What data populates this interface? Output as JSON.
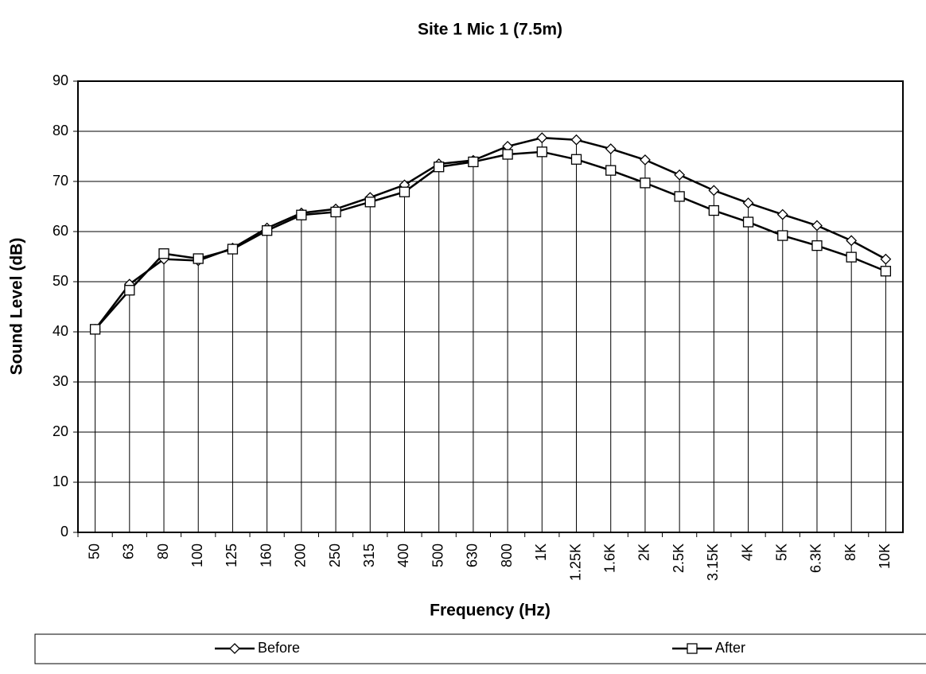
{
  "chart_data": {
    "type": "line",
    "title": "Site 1 Mic 1 (7.5m)",
    "x_label": "Frequency (Hz)",
    "y_label": "Sound Level (dB)",
    "categories": [
      "50",
      "63",
      "80",
      "100",
      "125",
      "160",
      "200",
      "250",
      "315",
      "400",
      "500",
      "630",
      "800",
      "1K",
      "1.25K",
      "1.6K",
      "2K",
      "2.5K",
      "3.15K",
      "4K",
      "5K",
      "6.3K",
      "8K",
      "10K"
    ],
    "series": [
      {
        "name": "Before",
        "color": "#000000",
        "marker": "diamond",
        "values": [
          40.5,
          49.5,
          54.5,
          54.2,
          56.7,
          60.7,
          63.7,
          64.5,
          66.8,
          69.3,
          73.5,
          74.2,
          77,
          78.7,
          78.3,
          76.5,
          74.3,
          71.3,
          68.2,
          65.7,
          63.4,
          61.2,
          58.2,
          54.5
        ]
      },
      {
        "name": "After",
        "color": "#000000",
        "marker": "square",
        "values": [
          40.5,
          48.3,
          55.6,
          54.6,
          56.5,
          60.2,
          63.3,
          63.9,
          65.9,
          67.9,
          72.9,
          73.9,
          75.4,
          75.9,
          74.4,
          72.2,
          69.7,
          67,
          64.2,
          61.9,
          59.2,
          57.2,
          54.9,
          52.1
        ]
      }
    ],
    "ylim": [
      0,
      90
    ],
    "yticks": [
      0,
      10,
      20,
      30,
      40,
      50,
      60,
      70,
      80,
      90
    ],
    "grid": true,
    "drop_lines": true,
    "legend": "bottom"
  }
}
